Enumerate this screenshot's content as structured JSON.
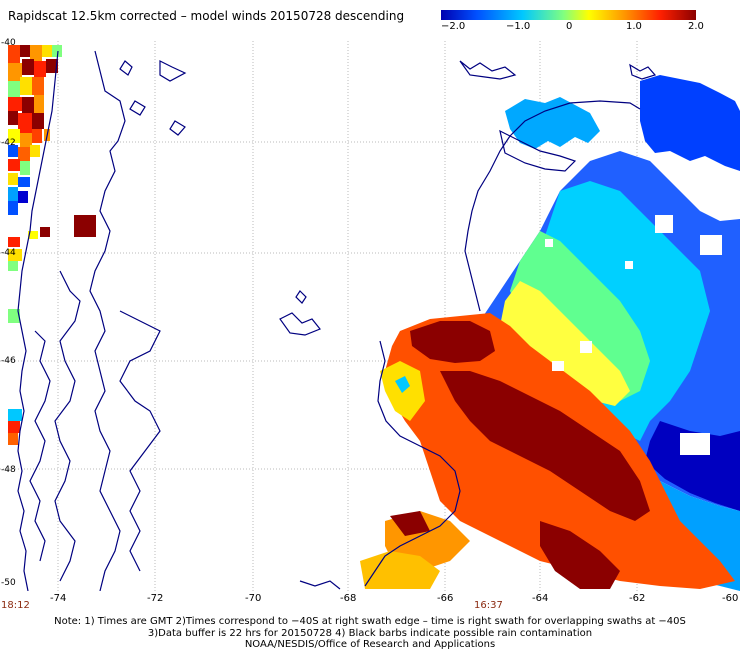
{
  "title": "Rapidscat 12.5km corrected – model winds 20150728 descending",
  "colorbar": {
    "ticks": [
      "−2.0",
      "−1.0",
      "0",
      "1.0",
      "2.0"
    ],
    "colors": [
      "#0000b0",
      "#0050ff",
      "#00c8ff",
      "#80ff80",
      "#ffff00",
      "#ff9600",
      "#ff2000",
      "#8b0000"
    ]
  },
  "map": {
    "lon_labels": [
      "-74",
      "-72",
      "-70",
      "-68",
      "-66",
      "-64",
      "-62",
      "-60"
    ],
    "lat_labels": [
      "-40",
      "-42",
      "-44",
      "-46",
      "-48",
      "-50"
    ],
    "land_outline_color": "#000080",
    "gridline_color": "#bbbbbb"
  },
  "times": [
    "18:12",
    "16:37"
  ],
  "notes": [
    "Note: 1) Times are GMT 2)Times correspond to −40S at right swath edge – time is right swath for overlapping swaths at −40S",
    "3)Data buffer is 22 hrs for 20150728 4) Black barbs indicate possible rain contamination",
    "NOAA/NESDIS/Office of Research and Applications"
  ]
}
